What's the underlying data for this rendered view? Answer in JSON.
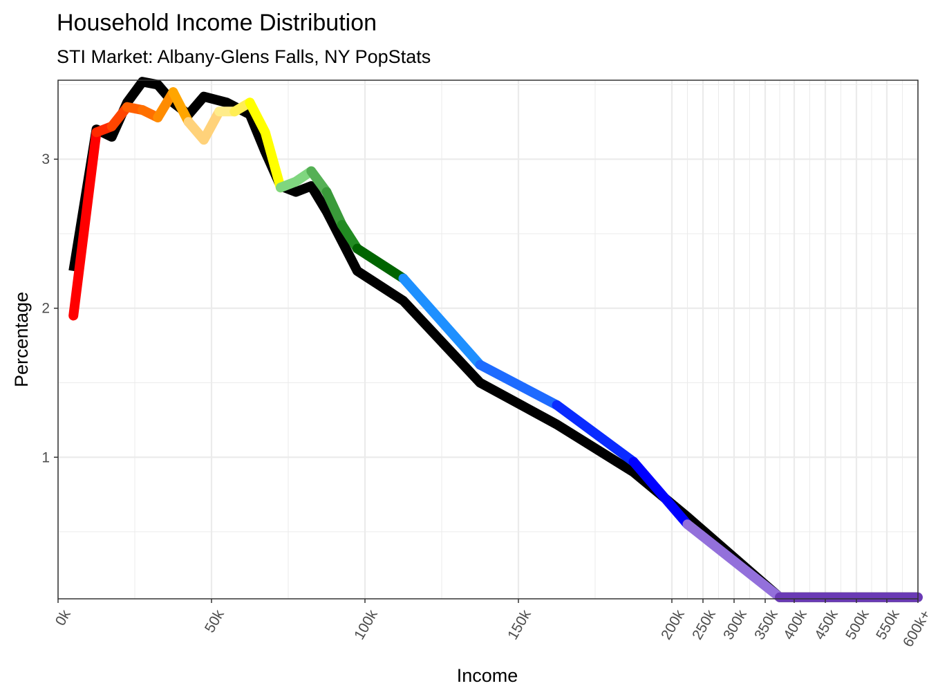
{
  "chart_data": {
    "type": "line",
    "title": "Household Income Distribution",
    "subtitle": "STI Market: Albany-Glens Falls, NY PopStats",
    "xlabel": "Income",
    "ylabel": "Percentage",
    "x_tick_labels": [
      "0k",
      "50k",
      "100k",
      "150k",
      "200k",
      "250k",
      "300k",
      "350k",
      "400k",
      "450k",
      "500k",
      "550k",
      "600k+"
    ],
    "y_ticks": [
      1,
      2,
      3
    ],
    "ylim": [
      0.05,
      3.53
    ],
    "grid": true,
    "legend": "none",
    "series": [
      {
        "color": "#000000",
        "points": [
          {
            "x": "5k",
            "y": 2.25
          },
          {
            "x": "12.5k",
            "y": 3.2
          },
          {
            "x": "17.5k",
            "y": 3.15
          },
          {
            "x": "22.5k",
            "y": 3.38
          },
          {
            "x": "27.5k",
            "y": 3.52
          },
          {
            "x": "32.5k",
            "y": 3.5
          },
          {
            "x": "37.5k",
            "y": 3.38
          },
          {
            "x": "42.5k",
            "y": 3.3
          },
          {
            "x": "47.5k",
            "y": 3.42
          },
          {
            "x": "55k",
            "y": 3.38
          },
          {
            "x": "62.5k",
            "y": 3.3
          },
          {
            "x": "67.5k",
            "y": 3.05
          },
          {
            "x": "72.5k",
            "y": 2.82
          },
          {
            "x": "77.5k",
            "y": 2.78
          },
          {
            "x": "82.5k",
            "y": 2.82
          },
          {
            "x": "87.5k",
            "y": 2.65
          },
          {
            "x": "92.5k",
            "y": 2.45
          },
          {
            "x": "97.5k",
            "y": 2.25
          },
          {
            "x": "112.5k",
            "y": 2.05
          },
          {
            "x": "137.5k",
            "y": 1.5
          },
          {
            "x": "162.5k",
            "y": 1.22
          },
          {
            "x": "187.5k",
            "y": 0.9
          },
          {
            "x": "225k",
            "y": 0.6
          },
          {
            "x": "375k",
            "y": 0.06
          },
          {
            "x": "600k+",
            "y": 0.06
          }
        ]
      }
    ],
    "colored_segments": [
      {
        "color": "#ff0000",
        "points": [
          {
            "x": "5k",
            "y": 1.95
          },
          {
            "x": "12.5k",
            "y": 3.18
          }
        ]
      },
      {
        "color": "#ff2a00",
        "points": [
          {
            "x": "12.5k",
            "y": 3.18
          },
          {
            "x": "17.5k",
            "y": 3.22
          }
        ]
      },
      {
        "color": "#ff4500",
        "points": [
          {
            "x": "17.5k",
            "y": 3.22
          },
          {
            "x": "22.5k",
            "y": 3.35
          }
        ]
      },
      {
        "color": "#ff6000",
        "points": [
          {
            "x": "22.5k",
            "y": 3.35
          },
          {
            "x": "27.5k",
            "y": 3.33
          }
        ]
      },
      {
        "color": "#ff7000",
        "points": [
          {
            "x": "27.5k",
            "y": 3.33
          },
          {
            "x": "32.5k",
            "y": 3.28
          }
        ]
      },
      {
        "color": "#ff8c00",
        "points": [
          {
            "x": "32.5k",
            "y": 3.28
          },
          {
            "x": "37.5k",
            "y": 3.45
          }
        ]
      },
      {
        "color": "#ffa500",
        "points": [
          {
            "x": "37.5k",
            "y": 3.45
          },
          {
            "x": "42.5k",
            "y": 3.25
          }
        ]
      },
      {
        "color": "#ffd27a",
        "points": [
          {
            "x": "42.5k",
            "y": 3.25
          },
          {
            "x": "47.5k",
            "y": 3.13
          },
          {
            "x": "52.5k",
            "y": 3.32
          }
        ]
      },
      {
        "color": "#ffec8b",
        "points": [
          {
            "x": "52.5k",
            "y": 3.32
          },
          {
            "x": "57.5k",
            "y": 3.32
          }
        ]
      },
      {
        "color": "#ffee55",
        "points": [
          {
            "x": "57.5k",
            "y": 3.32
          },
          {
            "x": "62.5k",
            "y": 3.38
          }
        ]
      },
      {
        "color": "#ffff00",
        "points": [
          {
            "x": "62.5k",
            "y": 3.38
          },
          {
            "x": "67.5k",
            "y": 3.18
          },
          {
            "x": "72.5k",
            "y": 2.81
          }
        ]
      },
      {
        "color": "#7fd67f",
        "points": [
          {
            "x": "72.5k",
            "y": 2.81
          },
          {
            "x": "77.5k",
            "y": 2.85
          },
          {
            "x": "82.5k",
            "y": 2.92
          }
        ]
      },
      {
        "color": "#55b055",
        "points": [
          {
            "x": "82.5k",
            "y": 2.92
          },
          {
            "x": "87.5k",
            "y": 2.78
          }
        ]
      },
      {
        "color": "#3a9a3a",
        "points": [
          {
            "x": "87.5k",
            "y": 2.78
          },
          {
            "x": "92.5k",
            "y": 2.56
          }
        ]
      },
      {
        "color": "#228b22",
        "points": [
          {
            "x": "92.5k",
            "y": 2.56
          },
          {
            "x": "97.5k",
            "y": 2.4
          }
        ]
      },
      {
        "color": "#006400",
        "points": [
          {
            "x": "97.5k",
            "y": 2.4
          },
          {
            "x": "112.5k",
            "y": 2.2
          }
        ]
      },
      {
        "color": "#1e90ff",
        "points": [
          {
            "x": "112.5k",
            "y": 2.2
          },
          {
            "x": "137.5k",
            "y": 1.62
          }
        ]
      },
      {
        "color": "#1e6bff",
        "points": [
          {
            "x": "137.5k",
            "y": 1.62
          },
          {
            "x": "162.5k",
            "y": 1.35
          }
        ]
      },
      {
        "color": "#0a2bff",
        "points": [
          {
            "x": "162.5k",
            "y": 1.35
          },
          {
            "x": "187.5k",
            "y": 0.97
          }
        ]
      },
      {
        "color": "#0000ff",
        "points": [
          {
            "x": "187.5k",
            "y": 0.97
          },
          {
            "x": "225k",
            "y": 0.55
          }
        ]
      },
      {
        "color": "#9370db",
        "points": [
          {
            "x": "225k",
            "y": 0.55
          },
          {
            "x": "375k",
            "y": 0.06
          }
        ]
      },
      {
        "color": "#6a3ab5",
        "points": [
          {
            "x": "375k",
            "y": 0.06
          },
          {
            "x": "600k+",
            "y": 0.06
          }
        ]
      }
    ]
  }
}
